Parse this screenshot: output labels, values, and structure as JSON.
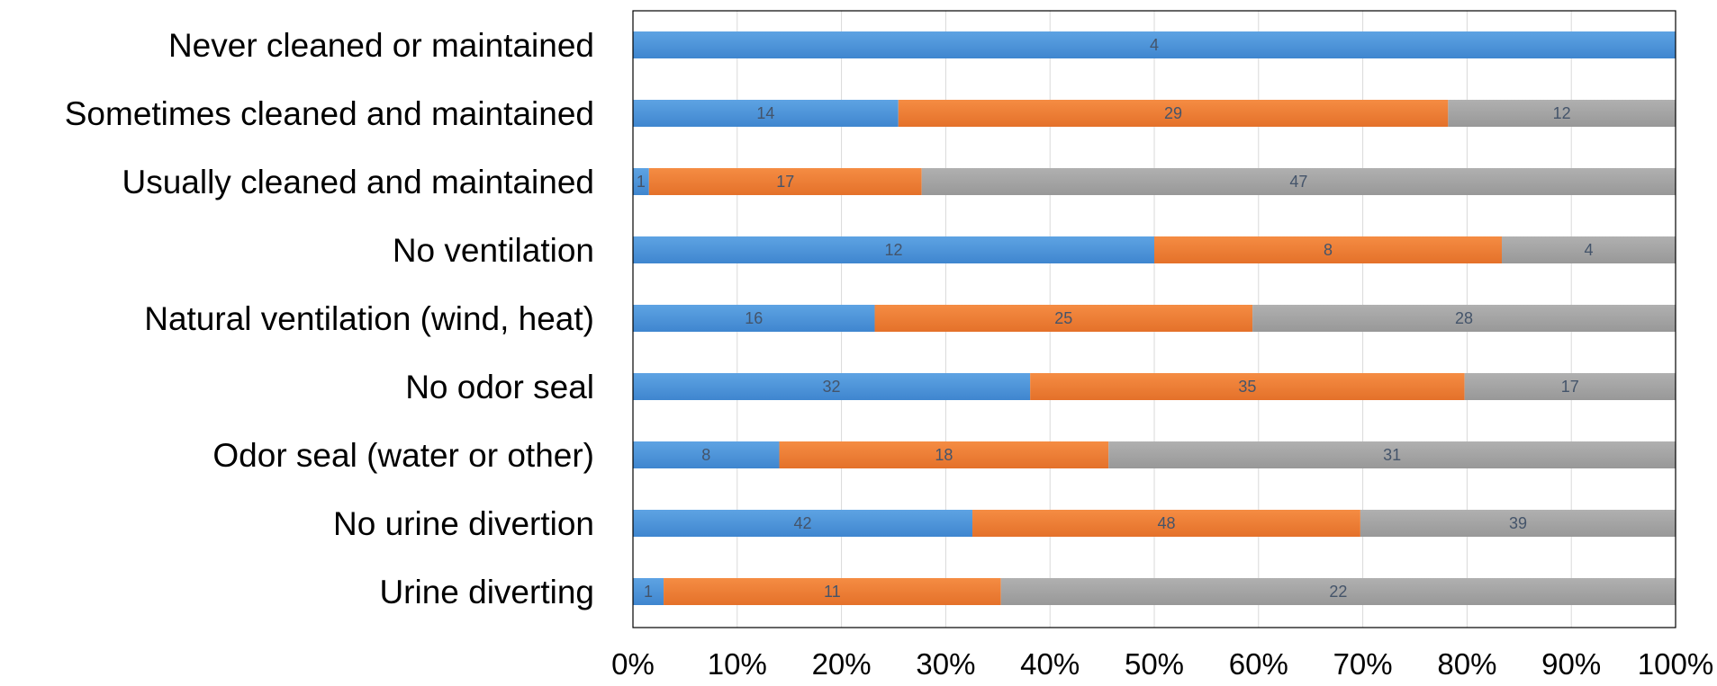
{
  "chart_data": {
    "type": "bar",
    "orientation": "horizontal",
    "stacking": "percent",
    "categories": [
      "Never cleaned or maintained",
      "Sometimes cleaned and maintained",
      "Usually cleaned and maintained",
      "No ventilation",
      "Natural ventilation (wind, heat)",
      "No odor seal",
      "Odor seal (water or other)",
      "No urine divertion",
      "Urine diverting"
    ],
    "series": [
      {
        "values": [
          4,
          14,
          1,
          12,
          16,
          32,
          8,
          42,
          1
        ],
        "color": "#4a90d6"
      },
      {
        "values": [
          0,
          29,
          17,
          8,
          25,
          35,
          18,
          48,
          11
        ],
        "color": "#ed7d31"
      },
      {
        "values": [
          0,
          12,
          47,
          4,
          28,
          17,
          31,
          39,
          22
        ],
        "color": "#a5a5a5"
      }
    ],
    "x_ticks": [
      "0%",
      "10%",
      "20%",
      "30%",
      "40%",
      "50%",
      "60%",
      "70%",
      "80%",
      "90%",
      "100%"
    ],
    "xlim": [
      0,
      100
    ],
    "grid": true,
    "legend": "none",
    "title": "",
    "xlabel": "",
    "ylabel": ""
  }
}
